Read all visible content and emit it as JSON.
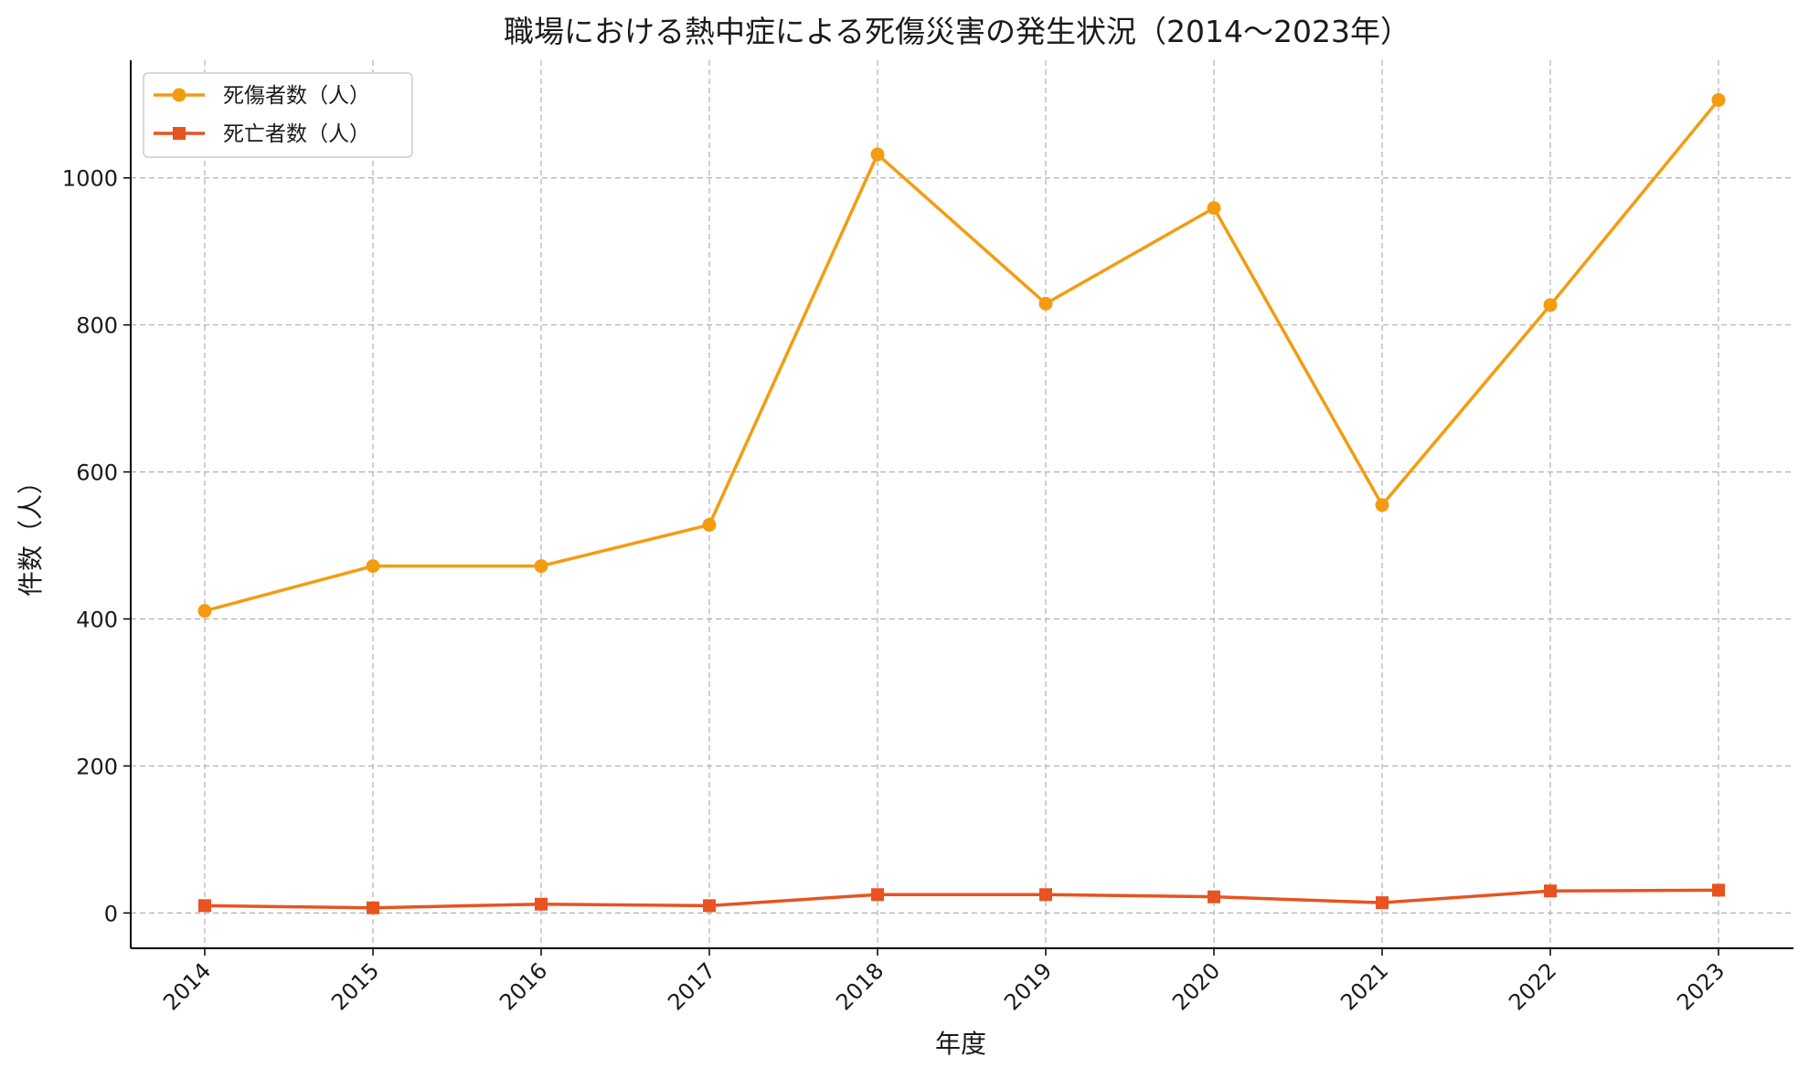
{
  "chart_data": {
    "type": "line",
    "title": "職場における熱中症による死傷災害の発生状況（2014〜2023年）",
    "xlabel": "年度",
    "ylabel": "件数（人）",
    "x": [
      "2014",
      "2015",
      "2016",
      "2017",
      "2018",
      "2019",
      "2020",
      "2021",
      "2022",
      "2023"
    ],
    "yticks": [
      "0",
      "200",
      "400",
      "600",
      "800",
      "1000"
    ],
    "ylim": [
      -48,
      1160
    ],
    "grid": true,
    "legend_position": "top-left",
    "series": [
      {
        "name": "死傷者数（人）",
        "color": "#f39c12",
        "marker": "circle",
        "values": [
          411,
          472,
          472,
          528,
          1032,
          829,
          959,
          555,
          827,
          1106
        ]
      },
      {
        "name": "死亡者数（人）",
        "color": "#e8531f",
        "marker": "square",
        "values": [
          10,
          7,
          12,
          10,
          25,
          25,
          22,
          14,
          30,
          31
        ]
      }
    ]
  }
}
